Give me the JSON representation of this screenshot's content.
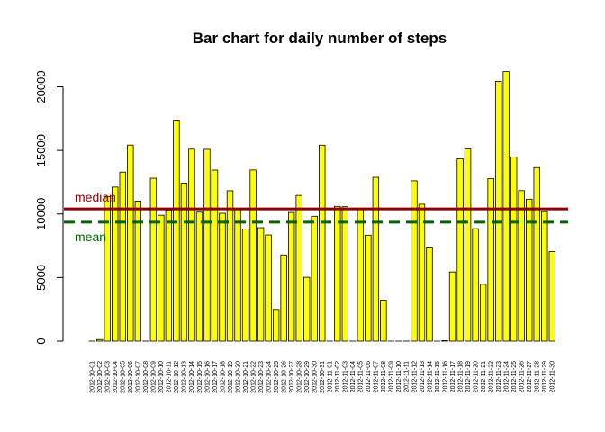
{
  "chart_data": {
    "type": "bar",
    "title": "Bar chart for daily number of steps",
    "xlabel": "",
    "ylabel": "",
    "ylim": [
      0,
      21500
    ],
    "yticks": [
      0,
      5000,
      10000,
      15000,
      20000
    ],
    "grid": false,
    "bar_color": "#ffff00",
    "bar_border_color": "#000000",
    "categories": [
      "2012-10-01",
      "2012-10-02",
      "2012-10-03",
      "2012-10-04",
      "2012-10-05",
      "2012-10-06",
      "2012-10-07",
      "2012-10-08",
      "2012-10-09",
      "2012-10-10",
      "2012-10-11",
      "2012-10-12",
      "2012-10-13",
      "2012-10-14",
      "2012-10-15",
      "2012-10-16",
      "2012-10-17",
      "2012-10-18",
      "2012-10-19",
      "2012-10-20",
      "2012-10-21",
      "2012-10-22",
      "2012-10-23",
      "2012-10-24",
      "2012-10-25",
      "2012-10-26",
      "2012-10-27",
      "2012-10-28",
      "2012-10-29",
      "2012-10-30",
      "2012-10-31",
      "2012-11-01",
      "2012-11-02",
      "2012-11-03",
      "2012-11-04",
      "2012-11-05",
      "2012-11-06",
      "2012-11-07",
      "2012-11-08",
      "2012-11-09",
      "2012-11-10",
      "2012-11-11",
      "2012-11-12",
      "2012-11-13",
      "2012-11-14",
      "2012-11-15",
      "2012-11-16",
      "2012-11-17",
      "2012-11-18",
      "2012-11-19",
      "2012-11-20",
      "2012-11-21",
      "2012-11-22",
      "2012-11-23",
      "2012-11-24",
      "2012-11-25",
      "2012-11-26",
      "2012-11-27",
      "2012-11-28",
      "2012-11-29",
      "2012-11-30"
    ],
    "values": [
      0,
      126,
      11352,
      12116,
      13294,
      15420,
      11015,
      0,
      12811,
      9900,
      10304,
      17382,
      12426,
      15098,
      10139,
      15084,
      13452,
      10056,
      11829,
      10395,
      8821,
      13460,
      8918,
      8355,
      2492,
      6778,
      10119,
      11458,
      5018,
      9819,
      15414,
      0,
      10600,
      10571,
      0,
      10439,
      8334,
      12883,
      3219,
      0,
      0,
      0,
      12608,
      10765,
      7336,
      0,
      41,
      5441,
      14339,
      15110,
      8841,
      4472,
      12787,
      20427,
      21194,
      14478,
      11834,
      11162,
      13646,
      10183,
      7047
    ],
    "reference_lines": [
      {
        "label": "median",
        "value": 10395,
        "color": "#8b0000",
        "style": "solid"
      },
      {
        "label": "mean",
        "value": 9354,
        "color": "#006400",
        "style": "dashed"
      }
    ]
  }
}
